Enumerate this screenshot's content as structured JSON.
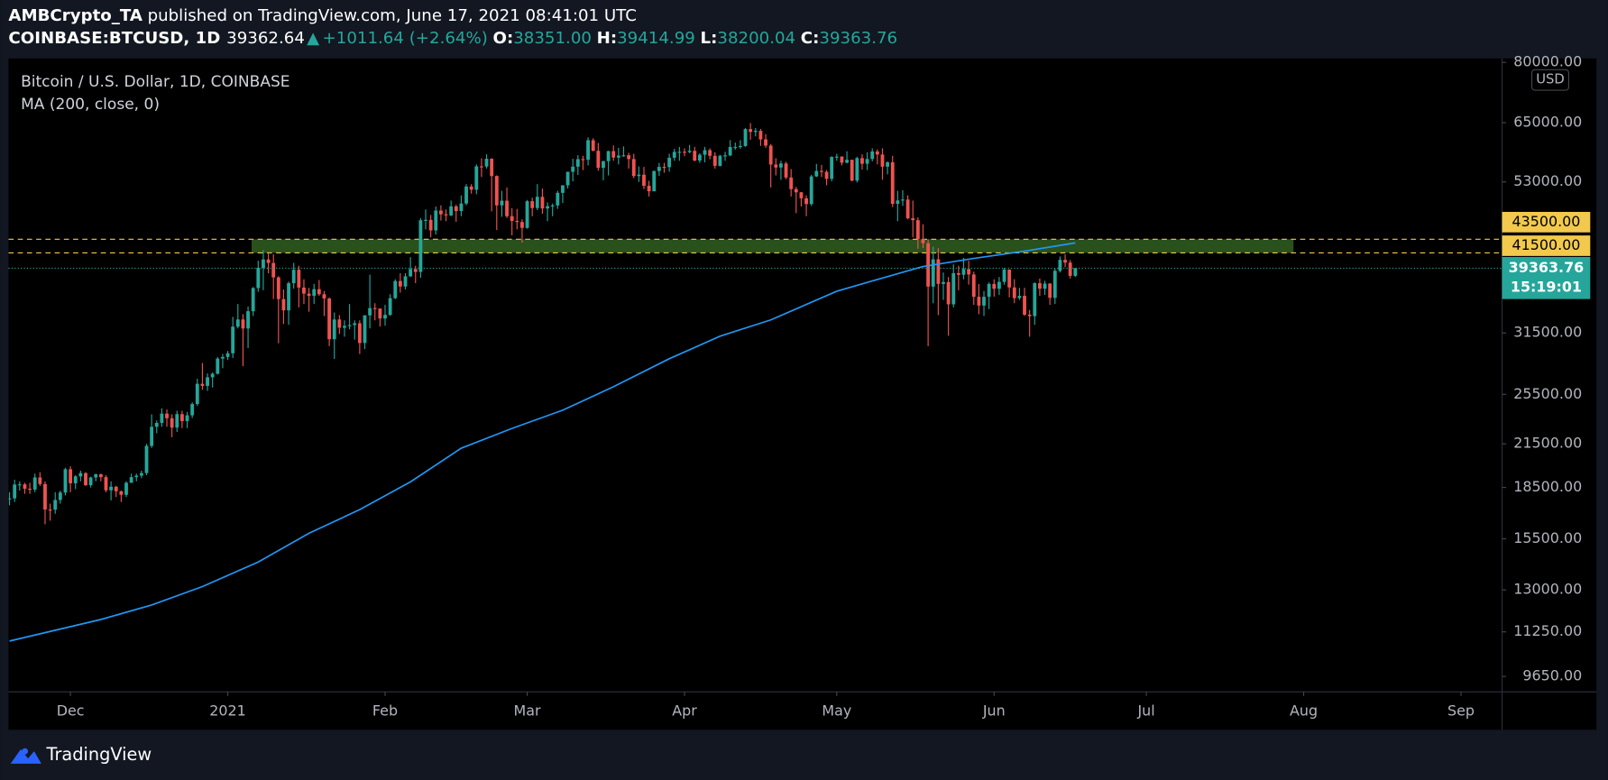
{
  "header": {
    "publisher": "AMBCrypto_TA",
    "published": "published on TradingView.com, June 17, 2021 08:41:01 UTC",
    "symbol": "COINBASE:BTCUSD, 1D",
    "last": "39362.64",
    "arrow": "▲",
    "change": "+1011.64 (+2.64%)",
    "ohlc": [
      {
        "key": "O:",
        "value": "38351.00"
      },
      {
        "key": "H:",
        "value": "39414.99"
      },
      {
        "key": "L:",
        "value": "38200.04"
      },
      {
        "key": "C:",
        "value": "39363.76"
      }
    ]
  },
  "footer": "TradingView",
  "chart_data": {
    "type": "candlestick",
    "title": "Bitcoin / U.S. Dollar, 1D, COINBASE",
    "unit": "USD",
    "countdown": "15:19:01",
    "log_scale": true,
    "ylim": [
      9150,
      81100
    ],
    "xlim": [
      -0.2,
      294.1
    ],
    "yticks": [
      {
        "value": 80000,
        "label": "80000.00"
      },
      {
        "value": 65000,
        "label": "65000.00"
      },
      {
        "value": 53000,
        "label": "53000.00"
      },
      {
        "value": 31500,
        "label": "31500.00"
      },
      {
        "value": 25500,
        "label": "25500.00"
      },
      {
        "value": 21500,
        "label": "21500.00"
      },
      {
        "value": 18500,
        "label": "18500.00"
      },
      {
        "value": 15500,
        "label": "15500.00"
      },
      {
        "value": 13000,
        "label": "13000.00"
      },
      {
        "value": 11250,
        "label": "11250.00"
      },
      {
        "value": 9650,
        "label": "9650.00"
      }
    ],
    "xticks": [
      {
        "value": 12,
        "label": "Dec"
      },
      {
        "value": 43,
        "label": "2021"
      },
      {
        "value": 74,
        "label": "Feb"
      },
      {
        "value": 102,
        "label": "Mar"
      },
      {
        "value": 133,
        "label": "Apr"
      },
      {
        "value": 163,
        "label": "May"
      },
      {
        "value": 194,
        "label": "Jun"
      },
      {
        "value": 224,
        "label": "Jul"
      },
      {
        "value": 255,
        "label": "Aug"
      },
      {
        "value": 286,
        "label": "Sep"
      }
    ],
    "levels": [
      {
        "value": 43500,
        "label": "43500.00"
      },
      {
        "value": 41500,
        "label": "41500.00"
      }
    ],
    "level_color": "#f2c94c",
    "zone": {
      "x": [
        47.7,
        253
      ],
      "color": "#2d5a1f"
    },
    "series": [
      {
        "up_color": "#26a69a",
        "down_color": "#ef5350",
        "open": [
          17800,
          17820,
          18690,
          18700,
          18420,
          18370,
          19150,
          18720,
          17150,
          17140,
          17720,
          18180,
          19700,
          18770,
          19220,
          19440,
          18650,
          19150,
          19360,
          19170,
          18320,
          18550,
          18260,
          18040,
          18800,
          19170,
          19270,
          19440,
          21350,
          22800,
          23110,
          23860,
          23480,
          22740,
          23820,
          23250,
          23720,
          24660,
          26440,
          26250,
          27040,
          27370,
          28840,
          29000,
          29370,
          32190,
          33000,
          31990,
          33950,
          36770,
          39430,
          40580,
          40090,
          38150,
          35400,
          34050,
          37390,
          39160,
          36830,
          36070,
          35800,
          36630,
          36000,
          35470,
          30830,
          33000,
          32070,
          32280,
          32370,
          32570,
          30430,
          33470,
          34320,
          34270,
          33110,
          33530,
          35510,
          37670,
          36970,
          38290,
          39260,
          38870,
          46450,
          46510,
          44850,
          48020,
          47410,
          47230,
          48720,
          47940,
          49200,
          52170,
          51590,
          55920,
          55890,
          57410,
          54090,
          48890,
          49680,
          47100,
          46340,
          46160,
          45240,
          49590,
          48440,
          50350,
          48370,
          48750,
          48880,
          51040,
          52390,
          54880,
          55860,
          57330,
          57200,
          61190,
          59000,
          55640,
          56930,
          58930,
          57640,
          58030,
          58100,
          57350,
          54080,
          54340,
          52300,
          51320,
          55030,
          55820,
          55770,
          57610,
          58780,
          58800,
          58730,
          58990,
          57050,
          58200,
          59130,
          57990,
          56020,
          57990,
          58080,
          59770,
          59790,
          59980,
          63580,
          62960,
          63200,
          61370,
          60060,
          56270,
          55700,
          56470,
          53810,
          51700,
          51140,
          50090,
          49110,
          54020,
          55050,
          54870,
          53560,
          57750,
          57830,
          56630,
          57200,
          53240,
          57530,
          56420,
          57360,
          58860,
          58250,
          55860,
          56700,
          49150,
          49720,
          49880,
          46760,
          46460,
          43540,
          42910,
          36960,
          40600,
          37300,
          37540,
          34770,
          38710,
          38490,
          39270,
          38530,
          35680,
          34620,
          35680,
          37290,
          36680,
          37560,
          39190,
          36850,
          35520,
          35800,
          33550,
          33380,
          37390,
          36690,
          37340,
          35550,
          39020,
          40520,
          40140,
          38351
        ],
        "high": [
          18200,
          19000,
          18900,
          18800,
          18800,
          19400,
          19500,
          18900,
          17500,
          18200,
          18300,
          19800,
          19900,
          19300,
          19600,
          19500,
          19200,
          19400,
          19400,
          19300,
          18900,
          18600,
          18300,
          18900,
          19400,
          19400,
          19600,
          21500,
          23800,
          23300,
          24300,
          24200,
          23800,
          24100,
          24100,
          24000,
          24800,
          26900,
          28400,
          27400,
          27500,
          29000,
          29300,
          29600,
          33300,
          34800,
          33600,
          34500,
          36900,
          40400,
          41900,
          41400,
          41300,
          38300,
          36600,
          37600,
          40100,
          39700,
          37900,
          36800,
          37300,
          37800,
          36400,
          35600,
          33800,
          33500,
          32900,
          34800,
          32900,
          32900,
          33500,
          38500,
          34900,
          34200,
          34700,
          36000,
          37900,
          38700,
          38700,
          40900,
          39700,
          46800,
          48200,
          47300,
          48700,
          48900,
          48200,
          49700,
          49000,
          50600,
          52600,
          52600,
          56300,
          57500,
          58300,
          57500,
          54200,
          51400,
          52000,
          48400,
          48300,
          46600,
          49800,
          50200,
          52600,
          51800,
          49400,
          49200,
          51400,
          52400,
          54900,
          57400,
          58100,
          58000,
          61800,
          61600,
          60600,
          57000,
          59000,
          60100,
          59600,
          59900,
          58600,
          58400,
          55900,
          55800,
          53200,
          55100,
          56600,
          56600,
          58400,
          59400,
          59800,
          59500,
          60200,
          59800,
          58500,
          59800,
          59500,
          58700,
          58200,
          58800,
          61200,
          60700,
          61200,
          63800,
          64900,
          63800,
          63600,
          62500,
          60400,
          57500,
          57000,
          56800,
          55400,
          52100,
          51200,
          50600,
          54300,
          56400,
          56200,
          55200,
          57900,
          58400,
          57900,
          58900,
          57200,
          57800,
          58300,
          58700,
          59500,
          59300,
          59500,
          56900,
          58000,
          51400,
          51500,
          50600,
          49700,
          46900,
          45800,
          43500,
          42400,
          42200,
          38800,
          38200,
          39900,
          39700,
          40800,
          40400,
          38900,
          37300,
          36400,
          37500,
          37900,
          38200,
          39400,
          39200,
          37900,
          36800,
          36800,
          34100,
          37500,
          38000,
          37700,
          37400,
          39300,
          41000,
          41300,
          40500,
          39414.99
        ],
        "low": [
          17400,
          17600,
          18300,
          18100,
          18100,
          18200,
          18600,
          16300,
          16500,
          16900,
          17500,
          18000,
          18200,
          18400,
          18900,
          18600,
          18500,
          18900,
          18900,
          18200,
          17700,
          17900,
          17600,
          17900,
          18800,
          18900,
          19100,
          19300,
          21200,
          22300,
          22800,
          22800,
          22000,
          22400,
          22700,
          22700,
          23500,
          24500,
          25900,
          25800,
          26100,
          27300,
          27900,
          28700,
          28900,
          32000,
          28100,
          29900,
          33400,
          36300,
          36500,
          38700,
          35400,
          30400,
          32500,
          32400,
          36700,
          34400,
          34800,
          33900,
          34800,
          35800,
          33400,
          30100,
          28800,
          31400,
          31100,
          31900,
          30800,
          29300,
          29800,
          32000,
          32900,
          32200,
          32300,
          33400,
          35400,
          36200,
          36600,
          38200,
          37400,
          38100,
          45000,
          43800,
          44200,
          46400,
          46300,
          47100,
          46200,
          47100,
          48900,
          50900,
          50800,
          53900,
          55500,
          47900,
          44900,
          47000,
          46800,
          44100,
          45000,
          43000,
          45100,
          47100,
          48100,
          47500,
          46300,
          47100,
          48300,
          49300,
          51800,
          53100,
          54300,
          55200,
          56100,
          58900,
          55100,
          53300,
          54200,
          57000,
          56300,
          57800,
          55500,
          53700,
          53000,
          51700,
          50400,
          51300,
          54100,
          54700,
          54900,
          57000,
          57000,
          57900,
          58500,
          56900,
          56600,
          56700,
          57300,
          55500,
          55900,
          57000,
          57900,
          59200,
          59400,
          59800,
          61300,
          62000,
          60000,
          59600,
          52000,
          54200,
          53400,
          53500,
          50400,
          47600,
          48700,
          47100,
          48800,
          53900,
          53900,
          52400,
          53100,
          57000,
          56100,
          56500,
          53100,
          52900,
          55300,
          55200,
          56900,
          56300,
          53400,
          54400,
          48600,
          46300,
          48800,
          46600,
          43800,
          42100,
          42200,
          30100,
          34900,
          33500,
          35300,
          31200,
          34400,
          36500,
          37900,
          37200,
          34700,
          33600,
          33400,
          34200,
          35700,
          35900,
          37200,
          35600,
          34900,
          35300,
          33400,
          31100,
          32400,
          35800,
          35900,
          34700,
          34800,
          38800,
          39500,
          38000,
          38200.04
        ],
        "close": [
          17820,
          18690,
          18700,
          18420,
          18370,
          19150,
          18720,
          17150,
          17140,
          17720,
          18180,
          19700,
          18770,
          19220,
          19440,
          18650,
          19150,
          19360,
          19170,
          18320,
          18550,
          18260,
          18040,
          18800,
          19170,
          19270,
          19440,
          21350,
          22800,
          23110,
          23860,
          23480,
          22740,
          23820,
          23250,
          23720,
          24660,
          26440,
          26250,
          27040,
          27370,
          28840,
          29000,
          29370,
          32190,
          33000,
          31990,
          33950,
          36770,
          39430,
          40580,
          40090,
          38150,
          35400,
          34050,
          37390,
          39160,
          36830,
          36070,
          35800,
          36630,
          36000,
          35470,
          30830,
          33000,
          32070,
          32280,
          32370,
          32570,
          30430,
          33470,
          34320,
          34270,
          33110,
          33530,
          35510,
          37670,
          36970,
          38290,
          39260,
          38870,
          46450,
          46510,
          44850,
          48020,
          47410,
          47230,
          48720,
          47940,
          49200,
          52170,
          51590,
          55920,
          55890,
          57410,
          54090,
          48890,
          49680,
          47100,
          46340,
          46160,
          45240,
          49590,
          48440,
          50350,
          48370,
          48750,
          48880,
          51040,
          52390,
          54880,
          55860,
          57330,
          57200,
          61190,
          59000,
          55640,
          56930,
          58930,
          57640,
          58030,
          58100,
          57350,
          54080,
          54340,
          52300,
          51320,
          55030,
          55820,
          55770,
          57610,
          58780,
          58800,
          58730,
          58990,
          57050,
          58200,
          59130,
          57990,
          56020,
          57990,
          58080,
          59770,
          59790,
          59980,
          63580,
          62960,
          63200,
          61370,
          60060,
          56270,
          55700,
          56470,
          53810,
          51700,
          51140,
          50090,
          49110,
          54020,
          55050,
          54870,
          53560,
          57750,
          57830,
          56630,
          57200,
          53240,
          57530,
          56420,
          57360,
          58860,
          58250,
          55860,
          56700,
          49150,
          49720,
          49880,
          46760,
          46460,
          43540,
          42910,
          36960,
          40600,
          37300,
          37540,
          34770,
          38710,
          38490,
          39270,
          38530,
          35680,
          34620,
          35680,
          37290,
          36680,
          37560,
          39190,
          36850,
          35520,
          35800,
          33550,
          33380,
          37390,
          36690,
          37340,
          35550,
          39020,
          40520,
          40140,
          38350,
          39363.76
        ]
      },
      {
        "name": "MA (200, close, 0)",
        "color": "#2196f3",
        "x": [
          0,
          18,
          28,
          38,
          49,
          59,
          69,
          79,
          89,
          99,
          109,
          119,
          130,
          140,
          150,
          163,
          170,
          180,
          190,
          200,
          210
        ],
        "values": [
          10900,
          11740,
          12340,
          13150,
          14310,
          15800,
          17140,
          18860,
          21180,
          22670,
          24140,
          26180,
          28820,
          31150,
          32950,
          36380,
          37680,
          39610,
          40730,
          41760,
          42950
        ]
      }
    ]
  }
}
